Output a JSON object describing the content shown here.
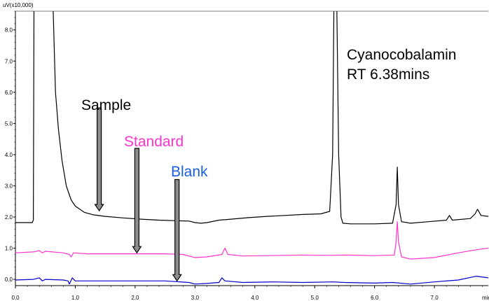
{
  "chart_data": {
    "type": "line",
    "ylabel": "uV(x10,000)",
    "xlabel": "min",
    "xlim": [
      0.0,
      7.9
    ],
    "ylim": [
      -0.2,
      8.6
    ],
    "x_ticks": [
      "0.0",
      "1.0",
      "2.0",
      "3.0",
      "4.0",
      "5.0",
      "6.0",
      "7.0"
    ],
    "y_ticks": [
      "0.0",
      "1.0",
      "2.0",
      "3.0",
      "4.0",
      "5.0",
      "6.0",
      "7.0",
      "8.0"
    ],
    "grid": false,
    "series": [
      {
        "key": "sample",
        "color": "#000000",
        "points": [
          [
            0.0,
            1.82
          ],
          [
            0.28,
            1.82
          ],
          [
            0.3,
            1.9
          ],
          [
            0.31,
            8.7
          ],
          [
            0.63,
            8.7
          ],
          [
            0.67,
            6.0
          ],
          [
            0.72,
            4.8
          ],
          [
            0.78,
            3.8
          ],
          [
            0.85,
            3.0
          ],
          [
            0.93,
            2.55
          ],
          [
            1.0,
            2.35
          ],
          [
            1.15,
            2.15
          ],
          [
            1.3,
            2.07
          ],
          [
            1.5,
            2.02
          ],
          [
            1.8,
            1.97
          ],
          [
            2.1,
            1.93
          ],
          [
            2.4,
            1.9
          ],
          [
            2.7,
            1.88
          ],
          [
            2.9,
            1.87
          ],
          [
            3.0,
            1.82
          ],
          [
            3.1,
            1.8
          ],
          [
            3.2,
            1.82
          ],
          [
            3.4,
            1.9
          ],
          [
            3.6,
            1.93
          ],
          [
            3.9,
            1.98
          ],
          [
            4.2,
            2.02
          ],
          [
            4.5,
            2.05
          ],
          [
            4.8,
            2.08
          ],
          [
            5.1,
            2.1
          ],
          [
            5.25,
            2.18
          ],
          [
            5.3,
            4.0
          ],
          [
            5.32,
            8.7
          ],
          [
            5.37,
            8.7
          ],
          [
            5.4,
            4.0
          ],
          [
            5.44,
            2.0
          ],
          [
            5.47,
            1.8
          ],
          [
            5.6,
            1.78
          ],
          [
            6.0,
            1.78
          ],
          [
            6.3,
            1.8
          ],
          [
            6.36,
            2.4
          ],
          [
            6.38,
            3.6
          ],
          [
            6.4,
            2.4
          ],
          [
            6.45,
            1.85
          ],
          [
            6.6,
            1.8
          ],
          [
            6.9,
            1.85
          ],
          [
            7.2,
            1.9
          ],
          [
            7.25,
            2.05
          ],
          [
            7.3,
            1.9
          ],
          [
            7.6,
            1.95
          ],
          [
            7.68,
            2.1
          ],
          [
            7.72,
            2.25
          ],
          [
            7.78,
            2.05
          ],
          [
            7.9,
            2.02
          ]
        ]
      },
      {
        "key": "standard",
        "color": "#ff33cc",
        "points": [
          [
            0.0,
            0.85
          ],
          [
            0.3,
            0.88
          ],
          [
            0.4,
            0.92
          ],
          [
            0.45,
            0.85
          ],
          [
            0.5,
            0.9
          ],
          [
            0.8,
            0.85
          ],
          [
            0.9,
            0.8
          ],
          [
            0.93,
            0.72
          ],
          [
            0.97,
            0.85
          ],
          [
            1.2,
            0.82
          ],
          [
            1.5,
            0.82
          ],
          [
            2.0,
            0.82
          ],
          [
            2.5,
            0.82
          ],
          [
            2.8,
            0.8
          ],
          [
            3.0,
            0.7
          ],
          [
            3.2,
            0.72
          ],
          [
            3.45,
            0.8
          ],
          [
            3.5,
            1.0
          ],
          [
            3.55,
            0.8
          ],
          [
            3.8,
            0.75
          ],
          [
            4.2,
            0.76
          ],
          [
            4.8,
            0.78
          ],
          [
            5.2,
            0.77
          ],
          [
            5.5,
            0.78
          ],
          [
            6.0,
            0.76
          ],
          [
            6.33,
            0.78
          ],
          [
            6.36,
            1.2
          ],
          [
            6.38,
            1.85
          ],
          [
            6.4,
            1.2
          ],
          [
            6.45,
            0.72
          ],
          [
            6.6,
            0.65
          ],
          [
            7.0,
            0.7
          ],
          [
            7.4,
            0.85
          ],
          [
            7.7,
            0.95
          ],
          [
            7.9,
            1.0
          ]
        ]
      },
      {
        "key": "blank",
        "color": "#0000cc",
        "points": [
          [
            0.0,
            -0.02
          ],
          [
            0.3,
            0.0
          ],
          [
            0.4,
            0.05
          ],
          [
            0.45,
            -0.05
          ],
          [
            0.5,
            0.0
          ],
          [
            0.8,
            -0.02
          ],
          [
            0.88,
            -0.05
          ],
          [
            0.9,
            -0.15
          ],
          [
            0.95,
            0.05
          ],
          [
            1.0,
            -0.05
          ],
          [
            1.5,
            -0.05
          ],
          [
            2.0,
            -0.05
          ],
          [
            2.5,
            -0.05
          ],
          [
            2.9,
            -0.1
          ],
          [
            3.0,
            -0.15
          ],
          [
            3.2,
            -0.13
          ],
          [
            3.4,
            -0.1
          ],
          [
            3.45,
            0.05
          ],
          [
            3.5,
            -0.05
          ],
          [
            3.8,
            -0.1
          ],
          [
            4.3,
            -0.08
          ],
          [
            4.8,
            -0.1
          ],
          [
            5.3,
            -0.08
          ],
          [
            5.5,
            -0.1
          ],
          [
            6.0,
            -0.12
          ],
          [
            6.3,
            -0.1
          ],
          [
            6.6,
            -0.15
          ],
          [
            7.0,
            -0.08
          ],
          [
            7.4,
            -0.02
          ],
          [
            7.7,
            0.1
          ],
          [
            7.9,
            0.05
          ]
        ]
      }
    ],
    "annotations": {
      "peak_name": "Cyanocobalamin",
      "peak_rt": "RT 6.38mins",
      "sample": {
        "label": "Sample",
        "color": "#000000",
        "arrow_x": 1.4,
        "arrow_top_y": 5.5,
        "arrow_tip_y": 2.2
      },
      "standard": {
        "label": "Standard",
        "color": "#ff33cc",
        "arrow_x": 2.03,
        "arrow_top_y": 4.2,
        "arrow_tip_y": 0.85
      },
      "blank": {
        "label": "Blank",
        "color": "#1a5fe0",
        "arrow_x": 2.7,
        "arrow_top_y": 3.2,
        "arrow_tip_y": -0.05
      }
    }
  }
}
